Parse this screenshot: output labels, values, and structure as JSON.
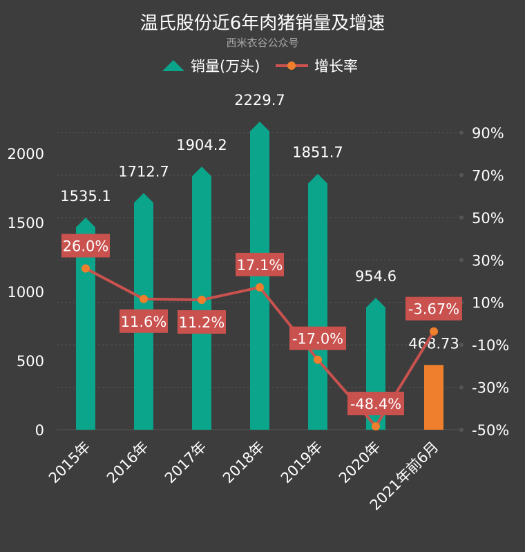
{
  "chart_data": {
    "type": "bar",
    "title": "温氏股份近6年肉猪销量及增速",
    "subtitle": "西米衣谷公众号",
    "categories": [
      "2015年",
      "2016年",
      "2017年",
      "2018年",
      "2019年",
      "2020年",
      "2021年前6月"
    ],
    "series": [
      {
        "name": "销量(万头)",
        "type": "bar",
        "axis": "left",
        "values": [
          1535.1,
          1712.7,
          1904.2,
          2229.7,
          1851.7,
          954.6,
          468.73
        ],
        "labels": [
          "1535.1",
          "1712.7",
          "1904.2",
          "2229.7",
          "1851.7",
          "954.6",
          "468.73"
        ]
      },
      {
        "name": "增长率",
        "type": "line",
        "axis": "right",
        "values": [
          26.0,
          11.6,
          11.2,
          17.1,
          -17.0,
          -48.4,
          -3.67
        ],
        "labels": [
          "26.0%",
          "11.6%",
          "11.2%",
          "17.1%",
          "-17.0%",
          "-48.4%",
          "-3.67%"
        ]
      }
    ],
    "y_left": {
      "ylim": [
        0,
        2000
      ],
      "ticks": [
        "0",
        "500",
        "1000",
        "1500",
        "2000"
      ]
    },
    "y_right": {
      "ylim": [
        -50,
        90
      ],
      "ticks": [
        "-50%",
        "-30%",
        "-10%",
        "10%",
        "30%",
        "50%",
        "70%",
        "90%"
      ]
    },
    "legend": "top",
    "grid": true,
    "colors": {
      "background": "#3d3d3d",
      "bar": "#0aa58a",
      "bar_last": "#f07f2d",
      "line": "#c9524f",
      "marker": "#f07f2d",
      "label_box": "#c9524f",
      "grid": "#555555"
    }
  }
}
